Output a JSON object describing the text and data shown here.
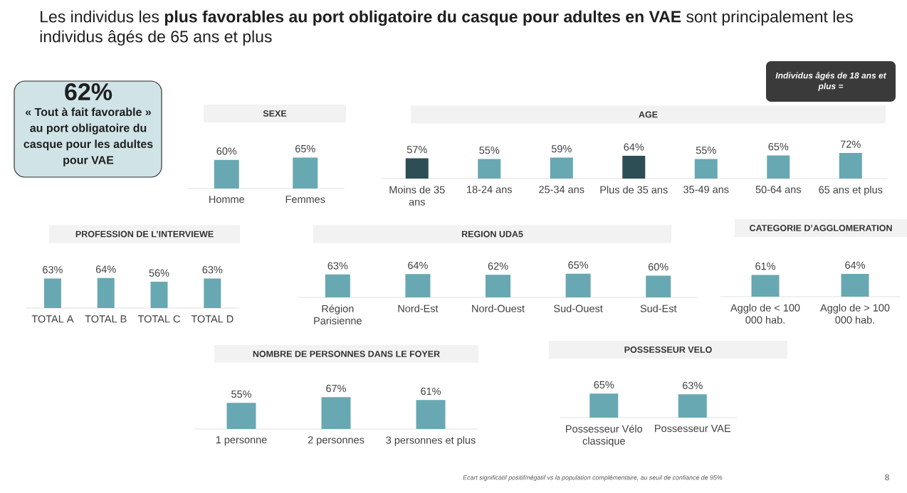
{
  "chart_data": [
    {
      "type": "other",
      "title": "Les individus les **plus favorables au port obligatoire du casque pour adultes en VAE** sont principalement les individus âgés de 65 ans et plus",
      "annotations": [
        "62%",
        "« Tout à fait favorable » au port obligatoire du casque pour les adultes pour VAE",
        "Ecart significatif positif/négatif vs la population complémentaire, au seuil de confiance de 95%",
        "8"
      ]
    },
    {
      "type": "bar",
      "title": "SEXE",
      "categories": [
        "Homme",
        "Femmes"
      ],
      "values": [
        60,
        65
      ],
      "value_labels": [
        "60%",
        "65%"
      ],
      "color": "#68a8b2"
    },
    {
      "type": "bar",
      "title": "AGE",
      "categories": [
        "Moins de 35 ans",
        "18-24 ans",
        "25-34 ans",
        "Plus de 35 ans",
        "35-49 ans",
        "50-64 ans",
        "65 ans et plus"
      ],
      "values": [
        57,
        55,
        59,
        64,
        55,
        65,
        72
      ],
      "value_labels": [
        "57%",
        "55%",
        "59%",
        "64%",
        "55%",
        "65%",
        "72%"
      ],
      "colors": [
        "#2d4e54",
        "#68a8b2",
        "#68a8b2",
        "#2d4e54",
        "#68a8b2",
        "#68a8b2",
        "#68a8b2"
      ],
      "annotations": [
        "Individus âgés de 18 ans et plus ="
      ]
    },
    {
      "type": "bar",
      "title": "PROFESSION DE L’INTERVIEWE",
      "categories": [
        "TOTAL A",
        "TOTAL B",
        "TOTAL C",
        "TOTAL D"
      ],
      "values": [
        63,
        64,
        56,
        63
      ],
      "value_labels": [
        "63%",
        "64%",
        "56%",
        "63%"
      ],
      "color": "#68a8b2"
    },
    {
      "type": "bar",
      "title": "REGION UDA5",
      "categories": [
        "Région Parisienne",
        "Nord-Est",
        "Nord-Ouest",
        "Sud-Ouest",
        "Sud-Est"
      ],
      "values": [
        63,
        64,
        62,
        65,
        60
      ],
      "value_labels": [
        "63%",
        "64%",
        "62%",
        "65%",
        "60%"
      ],
      "color": "#68a8b2"
    },
    {
      "type": "bar",
      "title": "CATEGORIE D’AGGLOMERATION",
      "categories": [
        "Agglo de < 100 000 hab.",
        "Agglo de > 100 000 hab."
      ],
      "values": [
        61,
        64
      ],
      "value_labels": [
        "61%",
        "64%"
      ],
      "color": "#68a8b2"
    },
    {
      "type": "bar",
      "title": "NOMBRE DE PERSONNES DANS LE FOYER",
      "categories": [
        "1 personne",
        "2 personnes",
        "3 personnes et plus"
      ],
      "values": [
        55,
        67,
        61
      ],
      "value_labels": [
        "55%",
        "67%",
        "61%"
      ],
      "color": "#68a8b2"
    },
    {
      "type": "bar",
      "title": "POSSESSEUR VELO",
      "categories": [
        "Possesseur Vélo classique",
        "Possesseur VAE"
      ],
      "values": [
        65,
        63
      ],
      "value_labels": [
        "65%",
        "63%"
      ],
      "color": "#68a8b2"
    }
  ]
}
